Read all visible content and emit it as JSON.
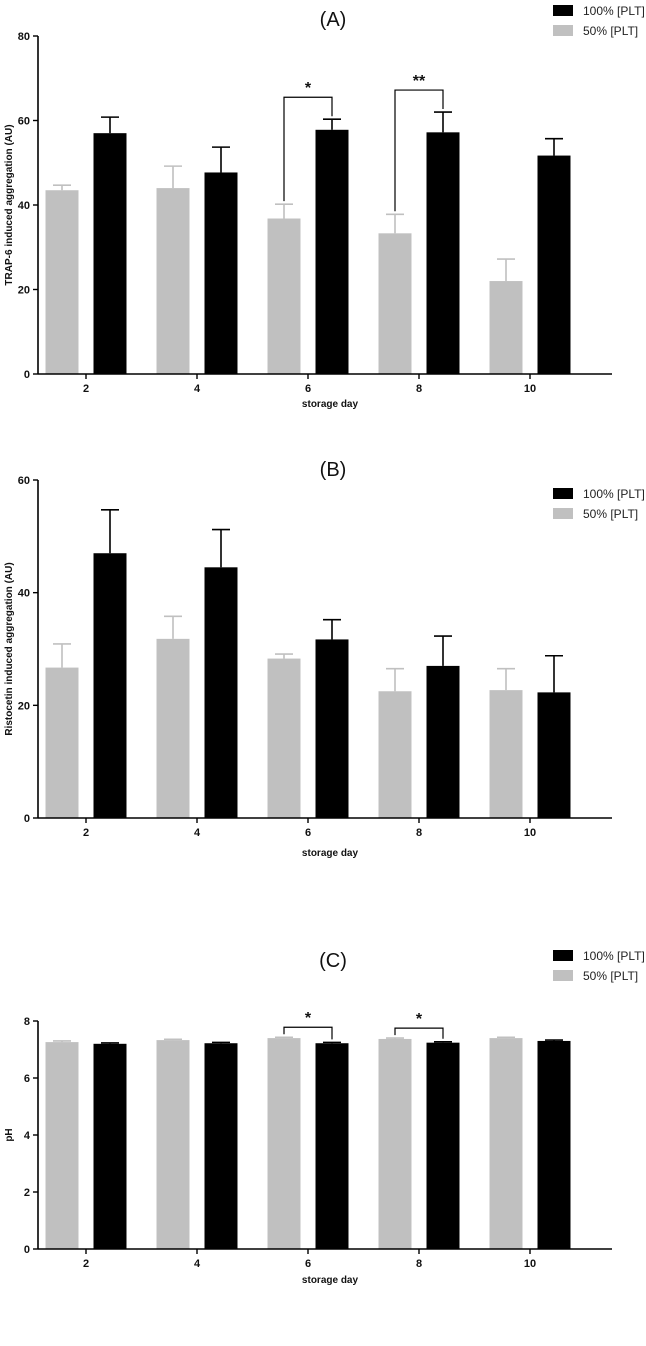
{
  "colors": {
    "series_100": "#000000",
    "series_50": "#c0c0c0",
    "axis": "#000000"
  },
  "chart_data": [
    {
      "type": "bar",
      "title": "(A)",
      "xlabel": "storage day",
      "ylabel": "TRAP-6 induced aggregation (AU)",
      "ylim": [
        0,
        80
      ],
      "yticks": [
        0,
        20,
        40,
        60,
        80
      ],
      "categories": [
        "2",
        "4",
        "6",
        "8",
        "10"
      ],
      "legend_position": "top-right",
      "series": [
        {
          "name": "100% [PLT]",
          "values": [
            57,
            47.7,
            57.8,
            57.2,
            51.7
          ],
          "errors": [
            3.8,
            6,
            2.5,
            4.8,
            4
          ]
        },
        {
          "name": "50% [PLT]",
          "values": [
            43.5,
            44,
            36.8,
            33.3,
            22
          ],
          "errors": [
            1.2,
            5.2,
            3.4,
            4.5,
            5.2
          ]
        }
      ],
      "significance": [
        {
          "category": "6",
          "label": "*"
        },
        {
          "category": "8",
          "label": "**"
        }
      ]
    },
    {
      "type": "bar",
      "title": "(B)",
      "xlabel": "storage day",
      "ylabel": "Ristocetin induced aggregation (AU)",
      "ylim": [
        0,
        60
      ],
      "yticks": [
        0,
        20,
        40,
        60
      ],
      "categories": [
        "2",
        "4",
        "6",
        "8",
        "10"
      ],
      "legend_position": "top-right",
      "series": [
        {
          "name": "100% [PLT]",
          "values": [
            47,
            44.5,
            31.7,
            27,
            22.3
          ],
          "errors": [
            7.7,
            6.7,
            3.5,
            5.3,
            6.5
          ]
        },
        {
          "name": "50% [PLT]",
          "values": [
            26.7,
            31.8,
            28.3,
            22.5,
            22.7
          ],
          "errors": [
            4.2,
            4,
            0.8,
            4,
            3.8
          ]
        }
      ],
      "significance": []
    },
    {
      "type": "bar",
      "title": "(C)",
      "xlabel": "storage day",
      "ylabel": "pH",
      "ylim": [
        0,
        8
      ],
      "yticks": [
        0,
        2,
        4,
        6,
        8
      ],
      "categories": [
        "2",
        "4",
        "6",
        "8",
        "10"
      ],
      "legend_position": "top-right",
      "series": [
        {
          "name": "100% [PLT]",
          "values": [
            7.2,
            7.22,
            7.22,
            7.24,
            7.3
          ],
          "errors": [
            0.03,
            0.03,
            0.03,
            0.03,
            0.03
          ]
        },
        {
          "name": "50% [PLT]",
          "values": [
            7.26,
            7.33,
            7.4,
            7.37,
            7.4
          ],
          "errors": [
            0.04,
            0.03,
            0.03,
            0.03,
            0.03
          ]
        }
      ],
      "significance": [
        {
          "category": "6",
          "label": "*"
        },
        {
          "category": "8",
          "label": "*"
        }
      ]
    }
  ]
}
